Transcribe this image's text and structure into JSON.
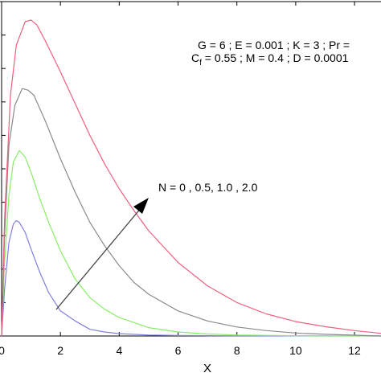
{
  "chart_data": {
    "type": "line",
    "title": "",
    "xlabel": "X",
    "ylabel": "",
    "xlim": [
      0,
      12.9
    ],
    "ylim": [
      0,
      1.0
    ],
    "x_ticks": [
      0,
      2,
      4,
      6,
      8,
      10,
      12
    ],
    "x_tick_labels": [
      "0",
      "2",
      "4",
      "6",
      "8",
      "10",
      "12"
    ],
    "grid": false,
    "legend": "none",
    "params_line1": "G = 6 ;  E = 0.001 ; K = 3 ; Pr =",
    "params_line2_c": "C",
    "params_line2_sub": "f",
    "params_line2_rest": " = 0.55 ; M = 0.4 ; D = 0.0001",
    "arrow_label": "N = 0 , 0.5,  1.0 , 2.0",
    "series": [
      {
        "name": "N = 0",
        "color": "#7f7fe0",
        "x": [
          0,
          0.1,
          0.25,
          0.4,
          0.5,
          0.6,
          0.8,
          1,
          1.3,
          1.6,
          2,
          2.5,
          3,
          3.5,
          4,
          5,
          6,
          7,
          8,
          10,
          12.9
        ],
        "y": [
          0.0,
          0.14,
          0.28,
          0.335,
          0.345,
          0.34,
          0.31,
          0.26,
          0.19,
          0.13,
          0.075,
          0.045,
          0.02,
          0.012,
          0.007,
          0.003,
          0.0015,
          0.001,
          0.0005,
          0.0002,
          0.0
        ]
      },
      {
        "name": "N = 0.5",
        "color": "#88ee66",
        "x": [
          0,
          0.1,
          0.25,
          0.4,
          0.6,
          0.8,
          1,
          1.3,
          1.6,
          2,
          2.5,
          3,
          3.5,
          4,
          5,
          6,
          7,
          8,
          10,
          12.9
        ],
        "y": [
          0.0,
          0.22,
          0.42,
          0.52,
          0.555,
          0.535,
          0.49,
          0.41,
          0.34,
          0.255,
          0.17,
          0.115,
          0.08,
          0.055,
          0.025,
          0.012,
          0.006,
          0.003,
          0.001,
          0.0
        ]
      },
      {
        "name": "N = 1.0",
        "color": "#8a8a8a",
        "x": [
          0,
          0.1,
          0.25,
          0.45,
          0.7,
          0.9,
          1.1,
          1.5,
          2,
          2.5,
          3,
          3.5,
          4,
          4.5,
          5,
          6,
          7,
          8,
          9,
          10,
          11,
          12.9
        ],
        "y": [
          0.0,
          0.3,
          0.57,
          0.69,
          0.74,
          0.735,
          0.72,
          0.64,
          0.53,
          0.43,
          0.34,
          0.27,
          0.21,
          0.16,
          0.125,
          0.075,
          0.045,
          0.027,
          0.016,
          0.009,
          0.005,
          0.0
        ]
      },
      {
        "name": "N = 2.0",
        "color": "#ee5f7f",
        "x": [
          0,
          0.1,
          0.3,
          0.5,
          0.8,
          1.0,
          1.2,
          1.5,
          2,
          2.5,
          3,
          3.5,
          4,
          4.5,
          5,
          6,
          7,
          8,
          9,
          10,
          11,
          12,
          12.9
        ],
        "y": [
          0.0,
          0.35,
          0.72,
          0.87,
          0.94,
          0.945,
          0.93,
          0.88,
          0.79,
          0.695,
          0.6,
          0.515,
          0.44,
          0.375,
          0.315,
          0.22,
          0.15,
          0.1,
          0.066,
          0.043,
          0.028,
          0.016,
          0.008
        ]
      }
    ]
  }
}
